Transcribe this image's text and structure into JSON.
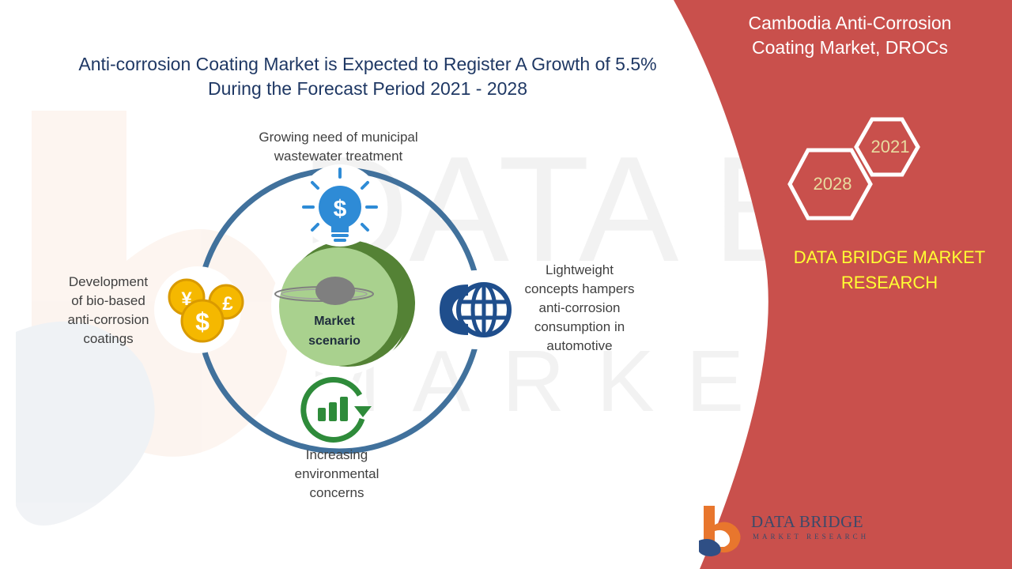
{
  "headline": {
    "line1": "Anti-corrosion Coating Market is Expected to Register A Growth of 5.5%",
    "line2": "During the Forecast Period 2021 - 2028"
  },
  "side_panel": {
    "title_line1": "Cambodia Anti-Corrosion",
    "title_line2": "Coating Market, DROCs",
    "year_start": "2021",
    "year_end": "2028",
    "brand_line1": "DATA BRIDGE MARKET",
    "brand_line2": "RESEARCH",
    "panel_color": "#c9504c"
  },
  "diagram": {
    "center_line1": "Market",
    "center_line2": "scenario",
    "top": {
      "line1": "Growing need of municipal",
      "line2": "wastewater treatment",
      "icon": "lightbulb-dollar-icon"
    },
    "right": {
      "line1": "Lightweight",
      "line2": "concepts hampers",
      "line3": "anti-corrosion",
      "line4": "consumption in",
      "line5": "automotive",
      "icon": "phone-globe-icon"
    },
    "bottom": {
      "line1": "Increasing",
      "line2": "environmental",
      "line3": "concerns",
      "icon": "growth-chart-icon"
    },
    "left": {
      "line1": "Development",
      "line2": "of bio-based",
      "line3": "anti-corrosion",
      "line4": "coatings",
      "icon": "coins-icon"
    },
    "ring_color": "#41719c",
    "center_color": "#a9d18e"
  },
  "logo": {
    "name": "DATA BRIDGE",
    "tagline": "MARKET RESEARCH"
  }
}
